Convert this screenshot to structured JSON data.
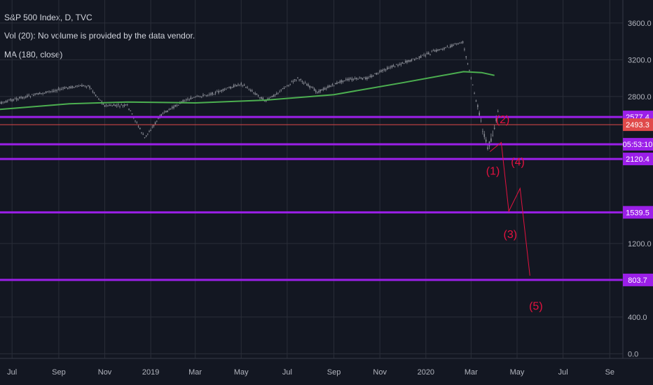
{
  "legend": {
    "title": "S&P 500 Index, D, TVC",
    "volume": "Vol (20): No volume is provided by the data vendor.",
    "ma": "MA (180, close)"
  },
  "colors": {
    "background": "#131722",
    "grid": "#2a2e39",
    "candle": "#8a8d96",
    "ma": "#4caf50",
    "level": "#9b1fe8",
    "last_price": "#e04a4a",
    "wave": "#e3123f"
  },
  "chart_data": {
    "type": "line",
    "ylim": [
      -50,
      3850
    ],
    "y_ticks": [
      "3600.0",
      "3200.0",
      "2800.0",
      "1200.0",
      "400.0",
      "0.0"
    ],
    "x_ticks": [
      "Jul",
      "Sep",
      "Nov",
      "2019",
      "Mar",
      "May",
      "Jul",
      "Sep",
      "Nov",
      "2020",
      "Mar",
      "May",
      "Jul",
      "Se"
    ],
    "series": [
      {
        "name": "",
        "x": [
          "2018-06-01",
          "2018-07-15",
          "2018-09-15",
          "2018-10-10",
          "2018-11-01",
          "2018-12-01",
          "2018-12-24",
          "2019-01-15",
          "2019-02-15",
          "2019-04-01",
          "2019-05-01",
          "2019-06-03",
          "2019-07-15",
          "2019-08-10",
          "2019-09-15",
          "2019-10-15",
          "2019-11-15",
          "2019-12-15",
          "2020-01-15",
          "2020-02-19",
          "2020-03-01",
          "2020-03-12",
          "2020-03-23",
          "2020-04-01",
          "2020-04-08"
        ],
        "y": [
          2700,
          2790,
          2900,
          2920,
          2700,
          2700,
          2350,
          2600,
          2760,
          2850,
          2940,
          2750,
          3000,
          2850,
          2980,
          3000,
          3120,
          3200,
          3300,
          3390,
          3000,
          2600,
          2230,
          2450,
          2700
        ]
      },
      {
        "name": "",
        "x": [
          "2018-06-01",
          "2018-09-15",
          "2018-12-01",
          "2019-03-01",
          "2019-06-01",
          "2019-09-01",
          "2019-12-01",
          "2020-02-20",
          "2020-03-15",
          "2020-04-01"
        ],
        "y": [
          2650,
          2720,
          2740,
          2730,
          2760,
          2820,
          2950,
          3070,
          3060,
          3030
        ]
      }
    ],
    "levels": [
      {
        "label": "2577.4",
        "value": 2577.4
      },
      {
        "label": "05:53:10",
        "value": 2160
      },
      {
        "label": "2120.4",
        "value": 2120.4
      },
      {
        "label": "1539.5",
        "value": 1539.5
      },
      {
        "label": "803.7",
        "value": 803.7
      }
    ],
    "last_price": {
      "label": "2493.3",
      "value": 2493.3
    },
    "annotations": [
      {
        "label": "(1)",
        "x": "2020-03-30",
        "y": 1950
      },
      {
        "label": "(2)",
        "x": "2020-04-12",
        "y": 2510
      },
      {
        "label": "(3)",
        "x": "2020-04-22",
        "y": 1260
      },
      {
        "label": "(4)",
        "x": "2020-05-02",
        "y": 2050
      },
      {
        "label": "(5)",
        "x": "2020-05-26",
        "y": 480
      }
    ],
    "wave_path": {
      "x": [
        "2020-03-26",
        "2020-04-10",
        "2020-04-20",
        "2020-05-05",
        "2020-05-18"
      ],
      "y": [
        2200,
        2300,
        1550,
        1800,
        850
      ]
    }
  }
}
